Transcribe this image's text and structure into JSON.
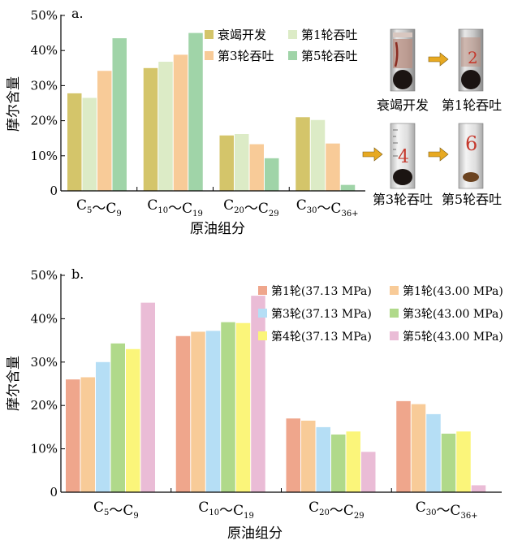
{
  "chart_data": [
    {
      "panel_label": "a.",
      "type": "bar",
      "ylabel": "摩尔含量",
      "xlabel": "原油组分",
      "ylim": [
        0,
        50
      ],
      "yticks": [
        "0",
        "10%",
        "20%",
        "30%",
        "40%",
        "50%"
      ],
      "legend_placement": "top-right",
      "categories": [
        {
          "main": "C",
          "s1": "5",
          "mid": "～C",
          "s2": "9"
        },
        {
          "main": "C",
          "s1": "10",
          "mid": "～C",
          "s2": "19"
        },
        {
          "main": "C",
          "s1": "20",
          "mid": "～C",
          "s2": "29"
        },
        {
          "main": "C",
          "s1": "30",
          "mid": "～C",
          "s2": "36+"
        }
      ],
      "series": [
        {
          "name": "衰竭开发",
          "color": "#d4c56a",
          "values": [
            27.8,
            35.0,
            15.8,
            21.0
          ]
        },
        {
          "name": "第1轮吞吐",
          "color": "#dcebc6",
          "values": [
            26.5,
            36.8,
            16.2,
            20.2
          ]
        },
        {
          "name": "第3轮吞吐",
          "color": "#f8cb98",
          "values": [
            34.2,
            38.8,
            13.3,
            13.5
          ]
        },
        {
          "name": "第5轮吞吐",
          "color": "#a0d4a8",
          "values": [
            43.5,
            45.0,
            9.3,
            1.7
          ]
        }
      ],
      "photos": [
        {
          "caption": "衰竭开发",
          "mark": ""
        },
        {
          "caption": "第1轮吞吐",
          "mark": "2"
        },
        {
          "caption": "第3轮吞吐",
          "mark": "4"
        },
        {
          "caption": "第5轮吞吐",
          "mark": "6"
        }
      ]
    },
    {
      "panel_label": "b.",
      "type": "bar",
      "ylabel": "摩尔含量",
      "xlabel": "原油组分",
      "ylim": [
        0,
        50
      ],
      "yticks": [
        "0",
        "10%",
        "20%",
        "30%",
        "40%",
        "50%"
      ],
      "legend_placement": "top-right",
      "categories": [
        {
          "main": "C",
          "s1": "5",
          "mid": "～C",
          "s2": "9"
        },
        {
          "main": "C",
          "s1": "10",
          "mid": "～C",
          "s2": "19"
        },
        {
          "main": "C",
          "s1": "20",
          "mid": "～C",
          "s2": "29"
        },
        {
          "main": "C",
          "s1": "30",
          "mid": "～C",
          "s2": "36+"
        }
      ],
      "series": [
        {
          "name": "第1轮(37.13 MPa)",
          "color": "#efa68c",
          "values": [
            26.0,
            36.0,
            17.0,
            21.0
          ]
        },
        {
          "name": "第1轮(43.00 MPa)",
          "color": "#f8cb98",
          "values": [
            26.5,
            37.0,
            16.5,
            20.3
          ]
        },
        {
          "name": "第3轮(37.13 MPa)",
          "color": "#b5def5",
          "values": [
            30.0,
            37.2,
            15.0,
            18.0
          ]
        },
        {
          "name": "第3轮(43.00 MPa)",
          "color": "#b0d98a",
          "values": [
            34.3,
            39.2,
            13.3,
            13.5
          ]
        },
        {
          "name": "第4轮(37.13 MPa)",
          "color": "#fbf57a",
          "values": [
            33.0,
            39.0,
            14.0,
            14.0
          ]
        },
        {
          "name": "第5轮(43.00 MPa)",
          "color": "#eabcd6",
          "values": [
            43.7,
            45.3,
            9.3,
            1.6
          ]
        }
      ]
    }
  ]
}
